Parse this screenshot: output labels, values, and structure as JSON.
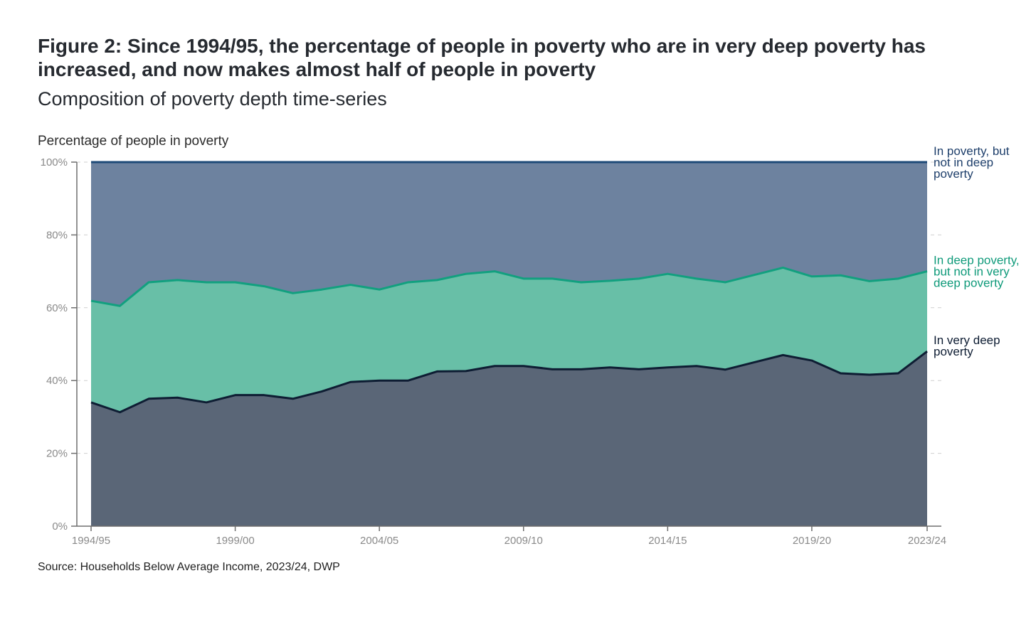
{
  "title": "Figure 2: Since 1994/95, the percentage of people in poverty who are in very deep poverty has increased, and now makes almost half of people in poverty",
  "subtitle": "Composition of poverty depth time-series",
  "source": "Source: Households Below Average Income, 2023/24, DWP",
  "chart_data": {
    "type": "area",
    "stacked": true,
    "ylabel": "Percentage of people in poverty",
    "ylim": [
      0,
      100
    ],
    "yticks": [
      "0%",
      "20%",
      "40%",
      "60%",
      "80%",
      "100%"
    ],
    "xtick_labels": [
      "1994/95",
      "1999/00",
      "2004/05",
      "2009/10",
      "2014/15",
      "2019/20",
      "2023/24"
    ],
    "x": [
      "1994/95",
      "1995/96",
      "1996/97",
      "1997/98",
      "1998/99",
      "1999/00",
      "2000/01",
      "2001/02",
      "2002/03",
      "2003/04",
      "2004/05",
      "2005/06",
      "2006/07",
      "2007/08",
      "2008/09",
      "2009/10",
      "2010/11",
      "2011/12",
      "2012/13",
      "2013/14",
      "2014/15",
      "2015/16",
      "2016/17",
      "2017/18",
      "2018/19",
      "2019/20",
      "2020/21",
      "2021/22",
      "2022/23",
      "2023/24"
    ],
    "grid": true,
    "legend": "right-end labels",
    "series": [
      {
        "name": "In very deep poverty",
        "cumulative_top": [
          34,
          31.3,
          35,
          35.3,
          34,
          36,
          36,
          35,
          37,
          39.6,
          40,
          40,
          42.5,
          42.6,
          44,
          44,
          43.1,
          43.1,
          43.6,
          43.1,
          43.6,
          44,
          43,
          45,
          47,
          45.5,
          42,
          41.6,
          42,
          48
        ],
        "fill": "#5a6677",
        "line": "#0e1d33"
      },
      {
        "name": "In deep poverty, but not in very deep poverty",
        "cumulative_top": [
          61.9,
          60.5,
          67,
          67.6,
          67,
          67,
          65.9,
          64,
          65,
          66.3,
          65,
          67,
          67.6,
          69.3,
          70,
          68,
          68,
          67,
          67.4,
          68,
          69.3,
          68,
          67,
          69,
          71,
          68.6,
          68.9,
          67.3,
          68,
          70
        ],
        "fill": "#68bfa7",
        "line": "#12a07f"
      },
      {
        "name": "In poverty, but not in deep poverty",
        "cumulative_top": [
          100,
          100,
          100,
          100,
          100,
          100,
          100,
          100,
          100,
          100,
          100,
          100,
          100,
          100,
          100,
          100,
          100,
          100,
          100,
          100,
          100,
          100,
          100,
          100,
          100,
          100,
          100,
          100,
          100,
          100
        ],
        "fill": "#6d829f",
        "line": "#1e4a78"
      }
    ],
    "end_labels": [
      {
        "lines": [
          "In poverty, but",
          "not in deep",
          "poverty"
        ],
        "color": "#1e3f6b"
      },
      {
        "lines": [
          "In deep poverty,",
          "but not in very",
          "deep poverty"
        ],
        "color": "#0f9a7a"
      },
      {
        "lines": [
          "In very deep",
          "poverty"
        ],
        "color": "#0e1d33"
      }
    ]
  }
}
